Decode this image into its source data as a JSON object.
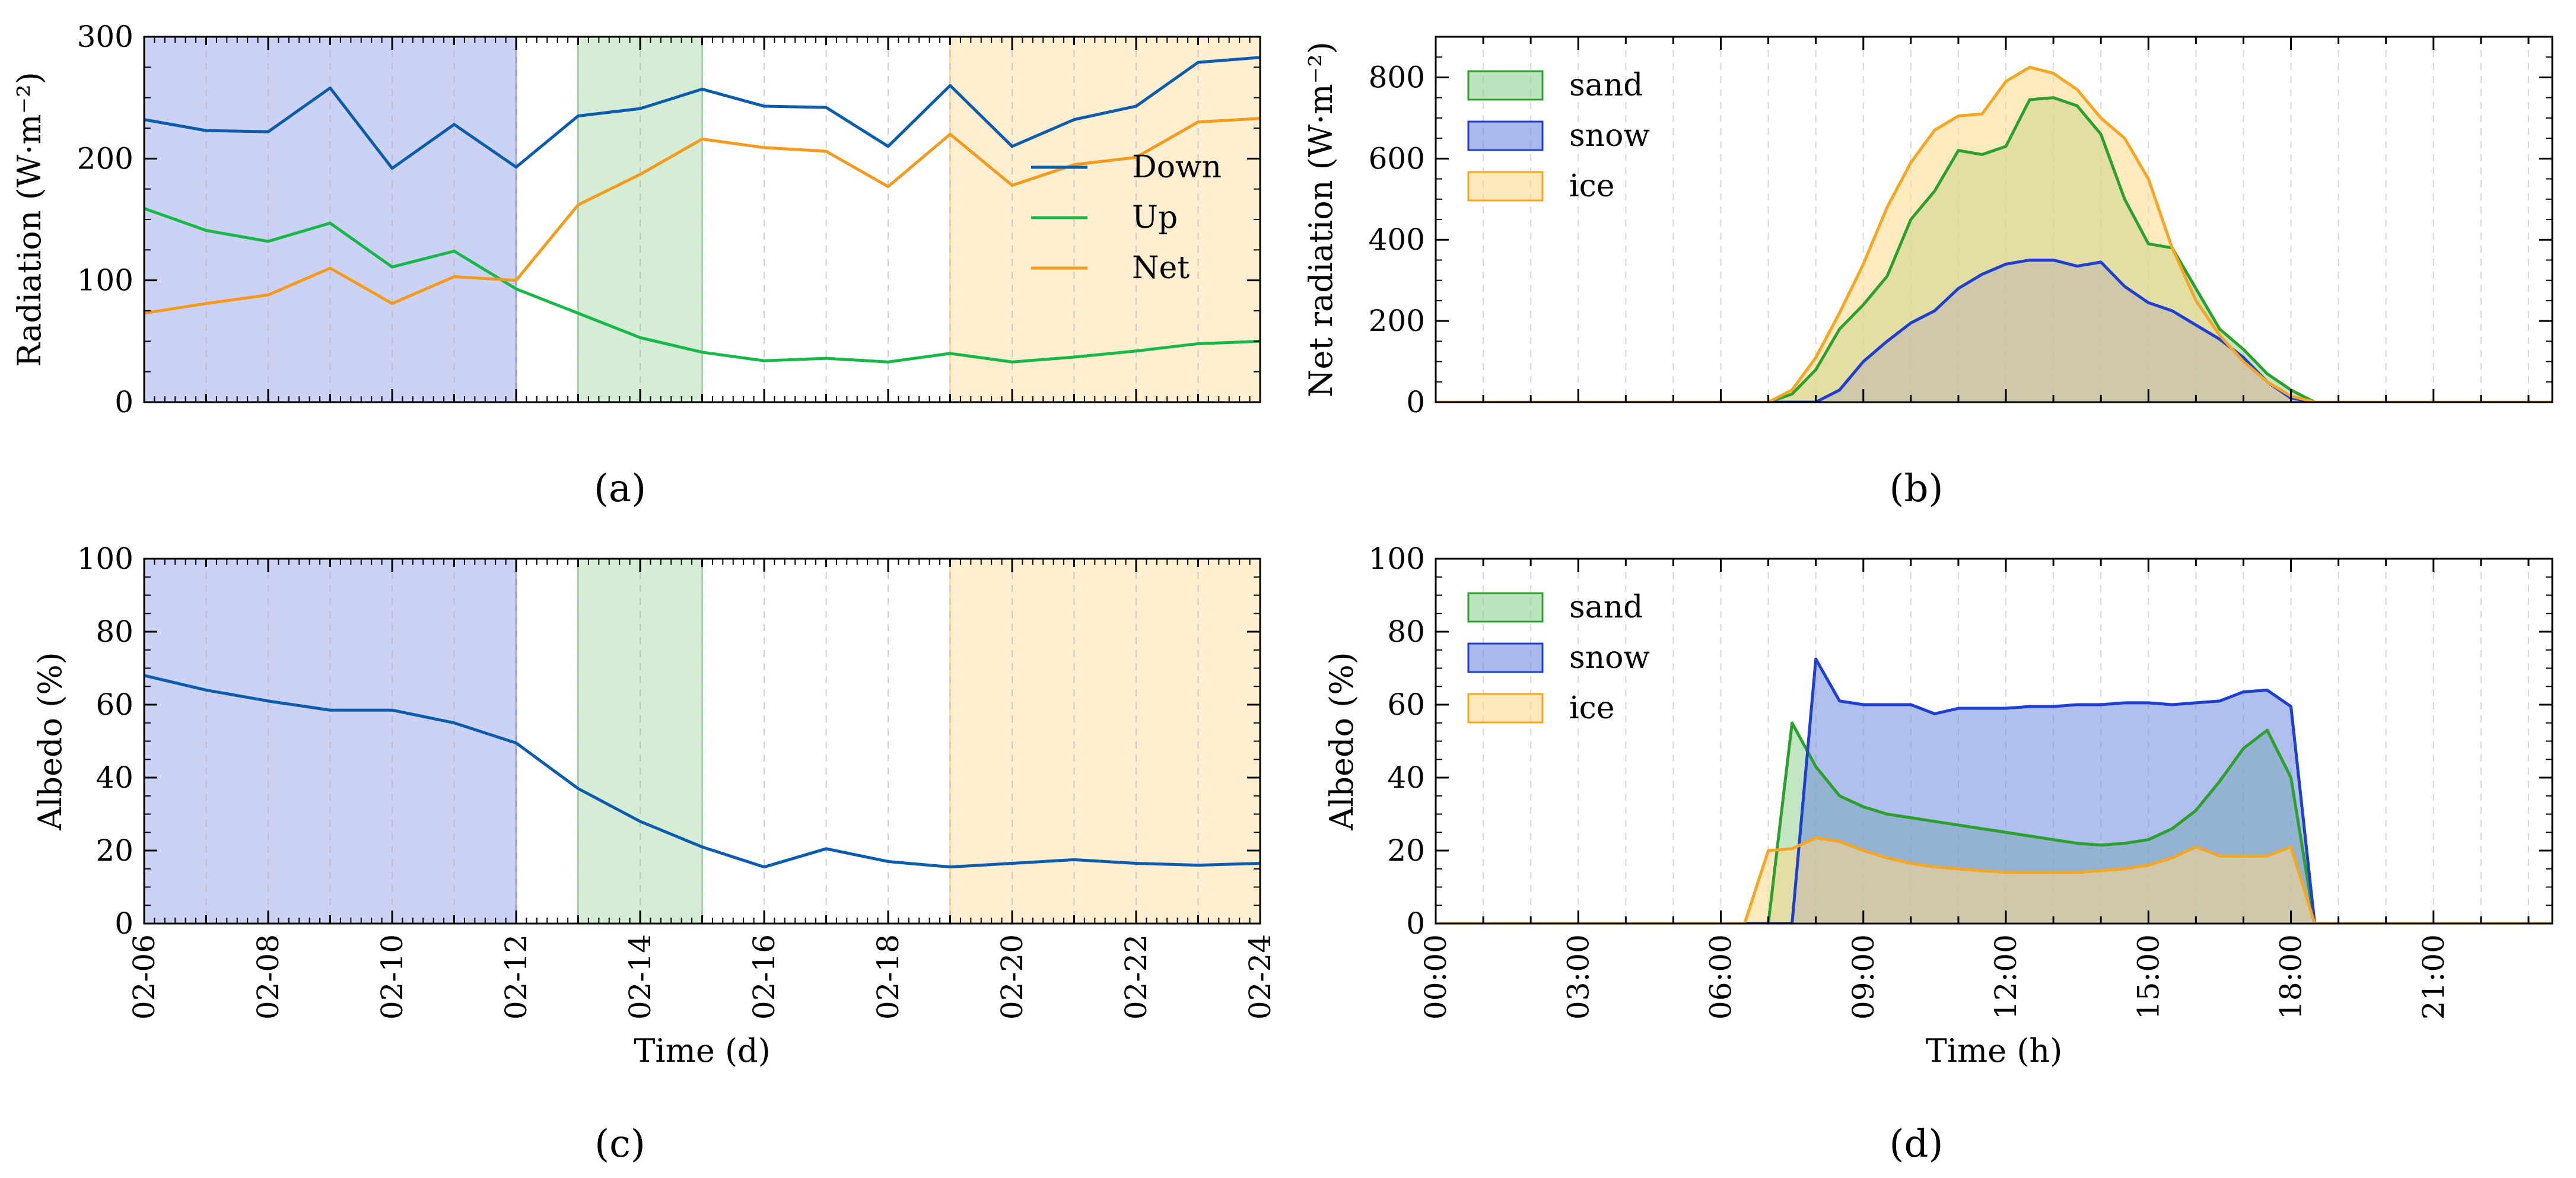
{
  "colors": {
    "blue_line": "#1f5aa6",
    "green_line": "#1db954",
    "orange_line": "#f5a020",
    "down_line": "#0b5cad",
    "up_line": "#18b848",
    "net_line": "#f49a1c",
    "sand_fill": "#8fd08f",
    "sand_line": "#2ca02c",
    "snow_fill": "#6f8be0",
    "snow_line": "#1f3fcf",
    "ice_fill": "#ffd98a",
    "ice_line": "#f5a623",
    "band_blue": "#8b9be6",
    "band_green": "#9fd89f",
    "band_orange": "#ffdc96"
  },
  "chart_data": [
    {
      "panel": "a",
      "type": "line",
      "panel_label": "(a)",
      "ylabel": "Radiation (W·m⁻²)",
      "xlabel": "",
      "xlim": [
        0,
        18
      ],
      "ylim": [
        0,
        300
      ],
      "yticks": [
        0,
        100,
        200,
        300
      ],
      "ytick_labels": [
        "0",
        "100",
        "200",
        "300"
      ],
      "x": [
        0,
        1,
        2,
        3,
        4,
        5,
        6,
        7,
        8,
        9,
        10,
        11,
        12,
        13,
        14,
        15,
        16,
        17,
        18
      ],
      "shaded_bands": [
        {
          "name": "snow",
          "start": 0,
          "end": 6
        },
        {
          "name": "sand",
          "start": 7,
          "end": 9
        },
        {
          "name": "ice",
          "start": 13,
          "end": 18
        }
      ],
      "series": [
        {
          "name": "Down",
          "values": [
            232,
            223,
            222,
            258,
            192,
            228,
            193,
            235,
            241,
            257,
            243,
            242,
            210,
            260,
            210,
            232,
            243,
            279,
            283
          ]
        },
        {
          "name": "Up",
          "values": [
            159,
            141,
            132,
            147,
            111,
            124,
            93,
            73,
            53,
            41,
            34,
            36,
            33,
            40,
            33,
            37,
            42,
            48,
            50
          ]
        },
        {
          "name": "Net",
          "values": [
            73,
            81,
            88,
            110,
            81,
            103,
            100,
            162,
            187,
            216,
            209,
            206,
            177,
            220,
            178,
            195,
            201,
            230,
            233
          ]
        }
      ],
      "legend": [
        "Down",
        "Up",
        "Net"
      ],
      "legend_position": "right"
    },
    {
      "panel": "b",
      "type": "area",
      "panel_label": "(b)",
      "ylabel": "Net radiation (W·m⁻²)",
      "xlabel": "",
      "xlim": [
        0,
        23.5
      ],
      "ylim": [
        0,
        900
      ],
      "yticks": [
        0,
        200,
        400,
        600,
        800
      ],
      "ytick_labels": [
        "0",
        "200",
        "400",
        "600",
        "800"
      ],
      "x": [
        0,
        7.0,
        7.5,
        8.0,
        8.5,
        9.0,
        9.5,
        10.0,
        10.5,
        11.0,
        11.5,
        12.0,
        12.5,
        13.0,
        13.5,
        14.0,
        14.5,
        15.0,
        15.5,
        16.0,
        16.5,
        17.0,
        17.5,
        18.0,
        18.5,
        23.5
      ],
      "series": [
        {
          "name": "sand",
          "values": [
            0,
            0,
            20,
            80,
            180,
            240,
            310,
            450,
            520,
            620,
            610,
            630,
            745,
            750,
            730,
            660,
            500,
            390,
            380,
            280,
            180,
            130,
            70,
            30,
            0,
            0
          ]
        },
        {
          "name": "snow",
          "values": [
            0,
            0,
            0,
            0,
            30,
            100,
            150,
            195,
            225,
            280,
            315,
            340,
            350,
            350,
            335,
            345,
            285,
            245,
            225,
            190,
            155,
            110,
            50,
            10,
            0,
            0
          ]
        },
        {
          "name": "ice",
          "values": [
            0,
            0,
            30,
            110,
            220,
            340,
            480,
            590,
            670,
            705,
            710,
            790,
            825,
            810,
            770,
            700,
            650,
            550,
            380,
            250,
            165,
            100,
            50,
            15,
            0,
            0
          ]
        }
      ],
      "legend": [
        "sand",
        "snow",
        "ice"
      ],
      "legend_position": "top-left"
    },
    {
      "panel": "c",
      "type": "line",
      "panel_label": "(c)",
      "ylabel": "Albedo (%)",
      "xlabel": "Time (d)",
      "xlim": [
        0,
        18
      ],
      "ylim": [
        0,
        100
      ],
      "yticks": [
        0,
        20,
        40,
        60,
        80,
        100
      ],
      "ytick_labels": [
        "0",
        "20",
        "40",
        "60",
        "80",
        "100"
      ],
      "xticks": [
        0,
        2,
        4,
        6,
        8,
        10,
        12,
        14,
        16,
        18
      ],
      "xtick_labels": [
        "02-06",
        "02-08",
        "02-10",
        "02-12",
        "02-14",
        "02-16",
        "02-18",
        "02-20",
        "02-22",
        "02-24"
      ],
      "x": [
        0,
        1,
        2,
        3,
        4,
        5,
        6,
        7,
        8,
        9,
        10,
        11,
        12,
        13,
        14,
        15,
        16,
        17,
        18
      ],
      "shaded_bands": [
        {
          "name": "snow",
          "start": 0,
          "end": 6
        },
        {
          "name": "sand",
          "start": 7,
          "end": 9
        },
        {
          "name": "ice",
          "start": 13,
          "end": 18
        }
      ],
      "series": [
        {
          "name": "Albedo",
          "values": [
            68,
            64,
            61,
            58.5,
            58.5,
            55,
            49.5,
            37,
            28,
            21,
            15.5,
            20.5,
            17,
            15.5,
            16.5,
            17.5,
            16.5,
            16,
            16.5
          ]
        }
      ]
    },
    {
      "panel": "d",
      "type": "area",
      "panel_label": "(d)",
      "ylabel": "Albedo (%)",
      "xlabel": "Time (h)",
      "xlim": [
        0,
        23.5
      ],
      "ylim": [
        0,
        100
      ],
      "yticks": [
        0,
        20,
        40,
        60,
        80,
        100
      ],
      "ytick_labels": [
        "0",
        "20",
        "40",
        "60",
        "80",
        "100"
      ],
      "xticks": [
        0,
        3,
        6,
        9,
        12,
        15,
        18,
        21
      ],
      "xtick_labels": [
        "00:00",
        "03:00",
        "06:00",
        "09:00",
        "12:00",
        "15:00",
        "18:00",
        "21:00"
      ],
      "series": [
        {
          "name": "sand",
          "x": [
            0,
            7.0,
            7.5,
            8.0,
            8.5,
            9.0,
            9.5,
            10.0,
            10.5,
            11.0,
            11.5,
            12.0,
            12.5,
            13.0,
            13.5,
            14.0,
            14.5,
            15.0,
            15.5,
            16.0,
            16.5,
            17.0,
            17.5,
            18.0,
            18.5,
            23.5
          ],
          "values": [
            0,
            0,
            55,
            43,
            35,
            32,
            30,
            29,
            28,
            27,
            26,
            25,
            24,
            23,
            22,
            21.5,
            22,
            23,
            26,
            31,
            39,
            48,
            53,
            40,
            0,
            0
          ]
        },
        {
          "name": "snow",
          "x": [
            0,
            7.5,
            8.0,
            8.5,
            9.0,
            9.5,
            10.0,
            10.5,
            11.0,
            11.5,
            12.0,
            12.5,
            13.0,
            13.5,
            14.0,
            14.5,
            15.0,
            15.5,
            16.0,
            16.5,
            17.0,
            17.5,
            18.0,
            18.5,
            23.5
          ],
          "values": [
            0,
            0,
            72.5,
            61,
            60,
            60,
            60,
            57.5,
            59,
            59,
            59,
            59.5,
            59.5,
            60,
            60,
            60.5,
            60.5,
            60,
            60.5,
            61,
            63.5,
            64,
            59.5,
            0,
            0
          ]
        },
        {
          "name": "ice",
          "x": [
            0,
            6.5,
            7.0,
            7.5,
            8.0,
            8.5,
            9.0,
            9.5,
            10.0,
            10.5,
            11.0,
            11.5,
            12.0,
            12.5,
            13.0,
            13.5,
            14.0,
            14.5,
            15.0,
            15.5,
            16.0,
            16.5,
            17.0,
            17.5,
            18.0,
            18.5,
            23.5
          ],
          "values": [
            0,
            0,
            20,
            20.5,
            23.5,
            22.5,
            20,
            18,
            16.5,
            15.5,
            15,
            14.5,
            14,
            14,
            14,
            14,
            14.5,
            15,
            16,
            18,
            21,
            18.5,
            18.5,
            18.5,
            21,
            0,
            0
          ]
        }
      ],
      "legend": [
        "sand",
        "snow",
        "ice"
      ],
      "legend_position": "top-left"
    }
  ]
}
